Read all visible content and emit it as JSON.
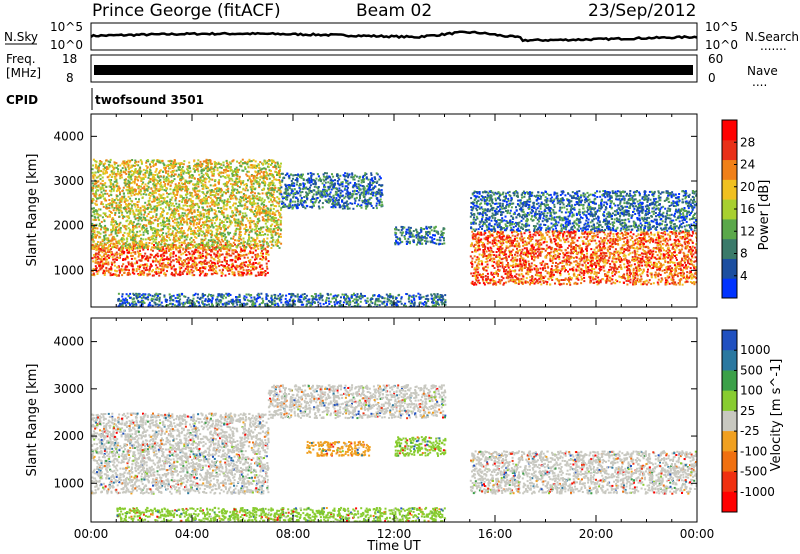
{
  "header": {
    "station": "Prince George (fitACF)",
    "beam": "Beam 02",
    "date": "23/Sep/2012"
  },
  "noise_panel": {
    "left_label": "N.Sky",
    "right_label": "N.Search",
    "left_ticks": [
      "10^5",
      "10^0"
    ],
    "right_ticks": [
      "10^5",
      "10^0"
    ]
  },
  "freq_panel": {
    "left_label_1": "Freq.",
    "left_label_2": "[MHz]",
    "left_ticks": [
      "18",
      "8"
    ],
    "right_ticks": [
      "60",
      "0"
    ],
    "right_label": "Nave"
  },
  "cpid_panel": {
    "label": "CPID",
    "program": "twofsound 3501"
  },
  "colors": {
    "power_scale": [
      "#0033ff",
      "#1c4fa0",
      "#3a7a6a",
      "#5aa84a",
      "#a8d030",
      "#f0c020",
      "#f08018",
      "#e83018",
      "#ff0000"
    ],
    "velocity_scale": [
      "#2050c0",
      "#2a78a0",
      "#3ba048",
      "#88cc30",
      "#c8c8c0",
      "#f0a020",
      "#f07010",
      "#f03010",
      "#ff0000"
    ]
  },
  "chart_data": [
    {
      "type": "heatmap",
      "title": "",
      "xlabel": "",
      "ylabel": "Slant Range [km]",
      "x_ticks": [
        "00:00",
        "04:00",
        "08:00",
        "12:00",
        "16:00",
        "20:00",
        "00:00"
      ],
      "x_range_hours": [
        0,
        24
      ],
      "y_ticks": [
        1000,
        2000,
        3000,
        4000
      ],
      "ylim": [
        180,
        4500
      ],
      "colorbar": {
        "label": "Power [dB]",
        "ticks": [
          4,
          8,
          12,
          16,
          20,
          24,
          28
        ],
        "range": [
          0,
          32
        ]
      },
      "echo_regions": [
        {
          "hours": [
            0,
            7
          ],
          "range_km": [
            900,
            1600
          ],
          "level": "high"
        },
        {
          "hours": [
            0,
            7.5
          ],
          "range_km": [
            1500,
            3500
          ],
          "level": "medium"
        },
        {
          "hours": [
            7.5,
            11.5
          ],
          "range_km": [
            2400,
            3200
          ],
          "level": "low"
        },
        {
          "hours": [
            12,
            14
          ],
          "range_km": [
            1600,
            2000
          ],
          "level": "low"
        },
        {
          "hours": [
            15,
            24
          ],
          "range_km": [
            700,
            1900
          ],
          "level": "high"
        },
        {
          "hours": [
            15,
            24
          ],
          "range_km": [
            1900,
            2800
          ],
          "level": "low"
        },
        {
          "hours": [
            1,
            14
          ],
          "range_km": [
            180,
            500
          ],
          "level": "low"
        }
      ]
    },
    {
      "type": "heatmap",
      "title": "",
      "xlabel": "Time UT",
      "ylabel": "Slant Range [km]",
      "x_ticks": [
        "00:00",
        "04:00",
        "08:00",
        "12:00",
        "16:00",
        "20:00",
        "00:00"
      ],
      "x_range_hours": [
        0,
        24
      ],
      "y_ticks": [
        1000,
        2000,
        3000,
        4000
      ],
      "ylim": [
        180,
        4500
      ],
      "colorbar": {
        "label": "Velocity [m s^-1]",
        "ticks": [
          "1000",
          "500",
          "100",
          "25",
          "-25",
          "-100",
          "-500",
          "-1000"
        ]
      },
      "echo_regions": [
        {
          "hours": [
            0,
            7
          ],
          "range_km": [
            800,
            2500
          ],
          "velocity": "near-zero"
        },
        {
          "hours": [
            7,
            14
          ],
          "range_km": [
            2400,
            3100
          ],
          "velocity": "near-zero"
        },
        {
          "hours": [
            8.5,
            11
          ],
          "range_km": [
            1600,
            1900
          ],
          "velocity": "-100"
        },
        {
          "hours": [
            12,
            14
          ],
          "range_km": [
            1600,
            2000
          ],
          "velocity": "100"
        },
        {
          "hours": [
            15,
            24
          ],
          "range_km": [
            800,
            1700
          ],
          "velocity": "near-zero"
        },
        {
          "hours": [
            1,
            14
          ],
          "range_km": [
            180,
            500
          ],
          "velocity": "100"
        }
      ]
    }
  ]
}
